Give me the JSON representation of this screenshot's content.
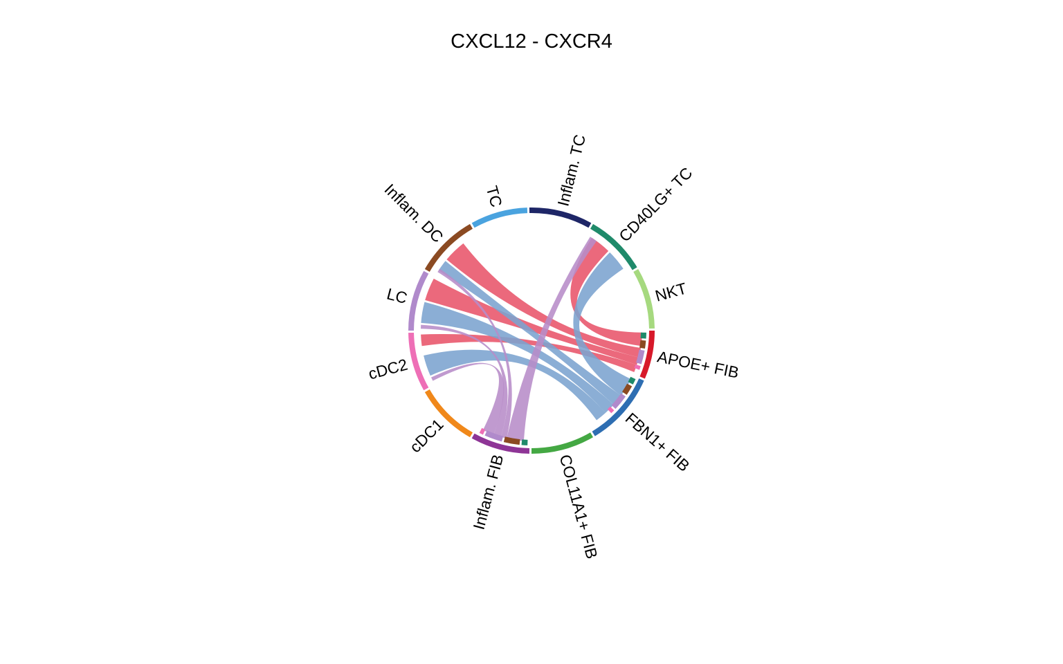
{
  "title": "CXCL12 - CXCR4",
  "sectors": [
    {
      "id": "TC",
      "label": "TC",
      "color": "#4aa3df",
      "start": -29,
      "end": -2
    },
    {
      "id": "InflamTC",
      "label": "Inflam. TC",
      "color": "#1e2667",
      "start": -1,
      "end": 29
    },
    {
      "id": "CD40LG",
      "label": "CD40LG+ TC",
      "color": "#1f8a6a",
      "start": 30,
      "end": 59
    },
    {
      "id": "NKT",
      "label": "NKT",
      "color": "#a6d97f",
      "start": 60,
      "end": 89
    },
    {
      "id": "APOE",
      "label": "APOE+ FIB",
      "color": "#d7192a",
      "start": 90,
      "end": 113
    },
    {
      "id": "FBN1",
      "label": "FBN1+ FIB",
      "color": "#2e6eb2",
      "start": 114,
      "end": 149
    },
    {
      "id": "COL11A1",
      "label": "COL11A1+ FIB",
      "color": "#44a843",
      "start": 150,
      "end": 180
    },
    {
      "id": "InflamFIB",
      "label": "Inflam. FIB",
      "color": "#8e3596",
      "start": 181,
      "end": 209
    },
    {
      "id": "cDC1",
      "label": "cDC1",
      "color": "#f0881a",
      "start": 210,
      "end": 240
    },
    {
      "id": "cDC2",
      "label": "cDC2",
      "color": "#ee6fb6",
      "start": 241,
      "end": 269
    },
    {
      "id": "LC",
      "label": "LC",
      "color": "#b08acb",
      "start": 270,
      "end": 299
    },
    {
      "id": "InflamDC",
      "label": "Inflam. DC",
      "color": "#8b4a22",
      "start": 300,
      "end": 330
    }
  ],
  "links": [
    {
      "from": "CD40LG",
      "to": "APOE",
      "color": "#e8546a",
      "s1": 33,
      "s2": 44,
      "t1": 91,
      "t2": 98
    },
    {
      "from": "InflamDC",
      "to": "APOE",
      "color": "#e8546a",
      "s1": 310,
      "s2": 322,
      "t1": 99,
      "t2": 104
    },
    {
      "from": "LC",
      "to": "APOE",
      "color": "#e8546a",
      "s1": 286,
      "s2": 298,
      "t1": 104,
      "t2": 108
    },
    {
      "from": "cDC2",
      "to": "APOE",
      "color": "#e8546a",
      "s1": 262,
      "s2": 268,
      "t1": 108,
      "t2": 112
    },
    {
      "from": "CD40LG",
      "to": "FBN1",
      "color": "#7ba3cf",
      "s1": 45,
      "s2": 56,
      "t1": 116,
      "t2": 126
    },
    {
      "from": "InflamDC",
      "to": "FBN1",
      "color": "#7ba3cf",
      "s1": 303,
      "s2": 309,
      "t1": 126,
      "t2": 132
    },
    {
      "from": "LC",
      "to": "FBN1",
      "color": "#7ba3cf",
      "s1": 274,
      "s2": 285,
      "t1": 132,
      "t2": 138
    },
    {
      "from": "cDC2",
      "to": "FBN1",
      "color": "#7ba3cf",
      "s1": 246,
      "s2": 257,
      "t1": 138,
      "t2": 144
    },
    {
      "from": "CD40LG",
      "to": "InflamFIB",
      "color": "#b78cc8",
      "s1": 32,
      "s2": 36,
      "t1": 184,
      "t2": 193
    },
    {
      "from": "InflamDC",
      "to": "InflamFIB",
      "color": "#b78cc8",
      "s1": 302,
      "s2": 304,
      "t1": 193,
      "t2": 196
    },
    {
      "from": "LC",
      "to": "InflamFIB",
      "color": "#b78cc8",
      "s1": 271,
      "s2": 273,
      "t1": 196,
      "t2": 200
    },
    {
      "from": "cDC2",
      "to": "InflamFIB",
      "color": "#b78cc8",
      "s1": 243,
      "s2": 245,
      "t1": 200,
      "t2": 206
    }
  ],
  "target_ticks": [
    {
      "color": "#1f8a6a",
      "start": 91,
      "end": 94
    },
    {
      "color": "#8b4a22",
      "start": 95,
      "end": 99
    },
    {
      "color": "#b08acb",
      "start": 100,
      "end": 107
    },
    {
      "color": "#ee6fb6",
      "start": 108,
      "end": 110
    },
    {
      "color": "#1f8a6a",
      "start": 115,
      "end": 118
    },
    {
      "color": "#8b4a22",
      "start": 119,
      "end": 124
    },
    {
      "color": "#b08acb",
      "start": 125,
      "end": 133
    },
    {
      "color": "#ee6fb6",
      "start": 134,
      "end": 136
    },
    {
      "color": "#1f8a6a",
      "start": 182,
      "end": 185
    },
    {
      "color": "#8b4a22",
      "start": 186,
      "end": 194
    },
    {
      "color": "#b08acb",
      "start": 195,
      "end": 204
    },
    {
      "color": "#ee6fb6",
      "start": 205,
      "end": 207
    }
  ]
}
